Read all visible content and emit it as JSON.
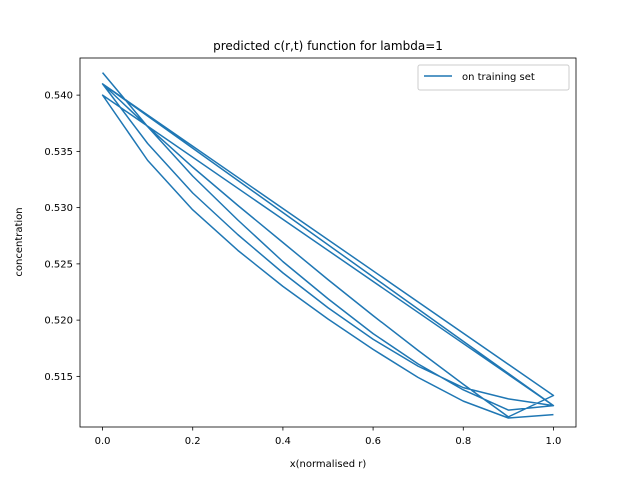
{
  "chart_data": {
    "type": "line",
    "title": "predicted c(r,t) function for lambda=1",
    "xlabel": "x(normalised r)",
    "ylabel": "concentration",
    "xlim": [
      -0.05,
      1.05
    ],
    "ylim": [
      0.5105,
      0.5433
    ],
    "xticks": [
      0.0,
      0.2,
      0.4,
      0.6,
      0.8,
      1.0
    ],
    "xtick_labels": [
      "0.0",
      "0.2",
      "0.4",
      "0.6",
      "0.8",
      "1.0"
    ],
    "yticks": [
      0.515,
      0.52,
      0.525,
      0.53,
      0.535,
      0.54
    ],
    "ytick_labels": [
      "0.515",
      "0.520",
      "0.525",
      "0.530",
      "0.535",
      "0.540"
    ],
    "grid": false,
    "legend_position": "top-right",
    "color": "#1f77b4",
    "series": [
      {
        "name": "on training set",
        "x": [
          0.0,
          0.1,
          0.2,
          0.3,
          0.4,
          0.5,
          0.6,
          0.7,
          0.8,
          0.9,
          1.0,
          0.0,
          0.1,
          0.2,
          0.3,
          0.4,
          0.5,
          0.6,
          0.7,
          0.8,
          0.9,
          1.0,
          0.0,
          0.1,
          0.2,
          0.3,
          0.4,
          0.5,
          0.6,
          0.7,
          0.8,
          0.9,
          1.0,
          0.0,
          0.1,
          0.2,
          0.3,
          0.4,
          0.5,
          0.6,
          0.7,
          0.8,
          0.9,
          1.0
        ],
        "y": [
          0.542,
          0.5372,
          0.5328,
          0.5289,
          0.5252,
          0.5219,
          0.5188,
          0.5161,
          0.5138,
          0.512,
          0.5124,
          0.541,
          0.5372,
          0.5336,
          0.5302,
          0.5269,
          0.5236,
          0.5204,
          0.5173,
          0.5143,
          0.5114,
          0.5133,
          0.541,
          0.5357,
          0.5313,
          0.5276,
          0.5242,
          0.5211,
          0.5183,
          0.5159,
          0.514,
          0.513,
          0.5124,
          0.54,
          0.5342,
          0.5298,
          0.5262,
          0.523,
          0.5201,
          0.5174,
          0.5149,
          0.5128,
          0.5113,
          0.5116
        ]
      }
    ]
  }
}
